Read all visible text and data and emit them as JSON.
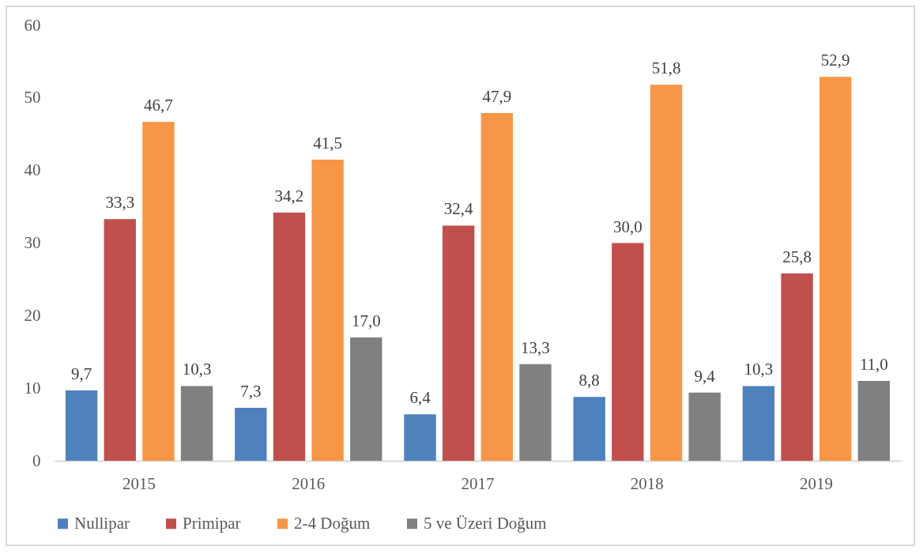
{
  "chart_data": {
    "type": "bar",
    "categories": [
      "2015",
      "2016",
      "2017",
      "2018",
      "2019"
    ],
    "series": [
      {
        "name": "Nullipar",
        "color": "#4f81bd",
        "values": [
          9.7,
          7.3,
          6.4,
          8.8,
          10.3
        ],
        "value_labels": [
          "9,7",
          "7,3",
          "6,4",
          "8,8",
          "10,3"
        ]
      },
      {
        "name": "Primipar",
        "color": "#c0504d",
        "values": [
          33.3,
          34.2,
          32.4,
          30.0,
          25.8
        ],
        "value_labels": [
          "33,3",
          "34,2",
          "32,4",
          "30,0",
          "25,8"
        ]
      },
      {
        "name": "2-4 Doğum",
        "color": "#f79646",
        "values": [
          46.7,
          41.5,
          47.9,
          51.8,
          52.9
        ],
        "value_labels": [
          "46,7",
          "41,5",
          "47,9",
          "51,8",
          "52,9"
        ]
      },
      {
        "name": "5 ve Üzeri Doğum",
        "color": "#808080",
        "values": [
          10.3,
          17.0,
          13.3,
          9.4,
          11.0
        ],
        "value_labels": [
          "10,3",
          "17,0",
          "13,3",
          "9,4",
          "11,0"
        ]
      }
    ],
    "ylim": [
      0,
      60
    ],
    "yticks": [
      0,
      10,
      20,
      30,
      40,
      50,
      60
    ],
    "legend": "bottom"
  }
}
